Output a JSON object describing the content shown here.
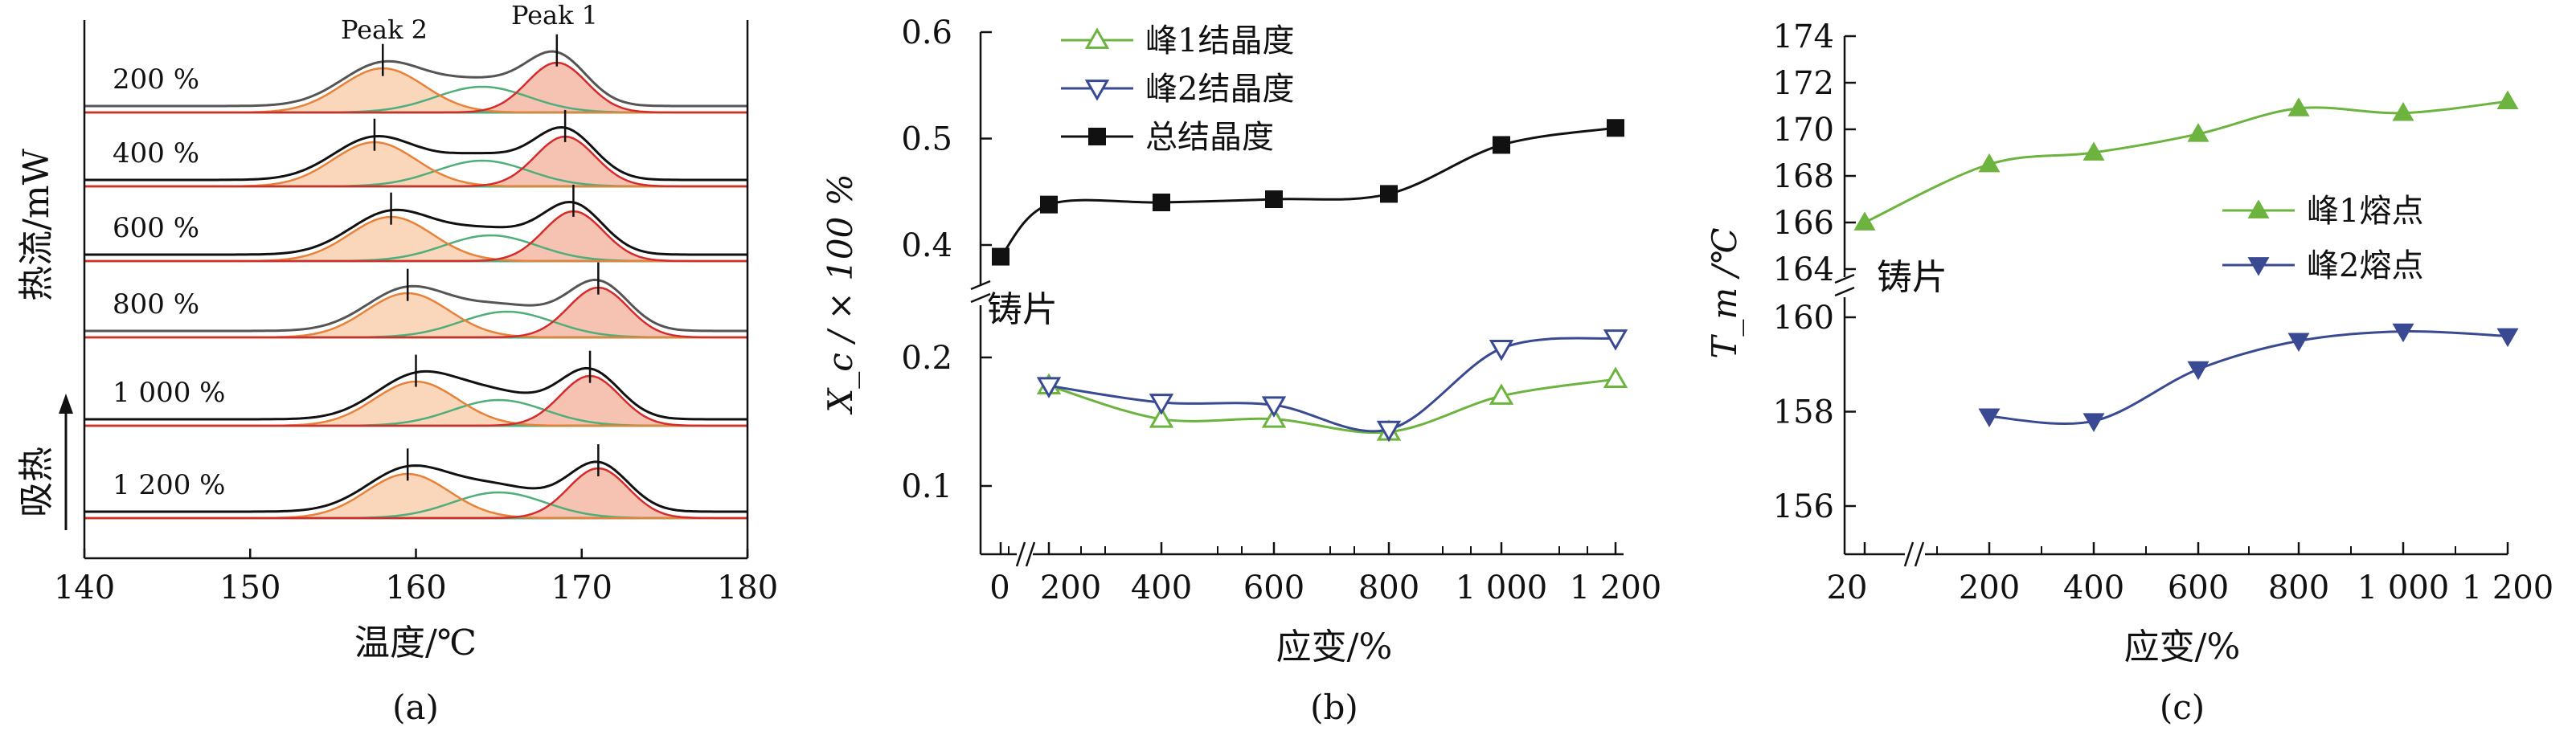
{
  "chart_data": [
    {
      "panel_label": "(a)",
      "type": "line",
      "xlabel": "温度/℃",
      "ylabel": "热流/mW",
      "endo_label": "吸热",
      "xticks": [
        "140",
        "150",
        "160",
        "170",
        "180"
      ],
      "xlim": [
        140,
        180
      ],
      "peak_labels": [
        "Peak 2",
        "Peak 1"
      ],
      "colors": {
        "total": "#111111",
        "peak1": "#d62b2b",
        "peak2": "#e8823a",
        "middle": "#4fae7a",
        "fill1": "#f5b8a6",
        "fill2": "#f9cfae"
      },
      "curves": [
        {
          "label": "200 %",
          "peak1_temp": 168.5,
          "peak2_temp": 158.0,
          "middle_temp": 164.0
        },
        {
          "label": "400 %",
          "peak1_temp": 169.0,
          "peak2_temp": 157.5,
          "middle_temp": 164.0
        },
        {
          "label": "600 %",
          "peak1_temp": 169.5,
          "peak2_temp": 158.5,
          "middle_temp": 164.5
        },
        {
          "label": "800 %",
          "peak1_temp": 171.0,
          "peak2_temp": 159.5,
          "middle_temp": 165.5
        },
        {
          "label": "1 000 %",
          "peak1_temp": 170.5,
          "peak2_temp": 160.0,
          "middle_temp": 165.0
        },
        {
          "label": "1 200 %",
          "peak1_temp": 171.0,
          "peak2_temp": 159.5,
          "middle_temp": 165.0
        }
      ]
    },
    {
      "panel_label": "(b)",
      "type": "line",
      "xlabel": "应变/%",
      "ylabel": "X_c / × 100 %",
      "xticks": [
        "0",
        "200",
        "400",
        "600",
        "800",
        "1 000",
        "1 200"
      ],
      "yticks_upper": [
        "0.4",
        "0.5",
        "0.6"
      ],
      "yticks_lower": [
        "0.1",
        "0.2"
      ],
      "annotation": "铸片",
      "series": [
        {
          "name": "峰1结晶度",
          "color": "#6db33f",
          "marker": "triangle-up-open",
          "x": [
            200,
            400,
            600,
            800,
            1000,
            1200
          ],
          "y": [
            0.178,
            0.152,
            0.152,
            0.142,
            0.17,
            0.183
          ]
        },
        {
          "name": "峰2结晶度",
          "color": "#3a4a92",
          "marker": "triangle-down-open",
          "x": [
            200,
            400,
            600,
            800,
            1000,
            1200
          ],
          "y": [
            0.178,
            0.165,
            0.163,
            0.144,
            0.207,
            0.215
          ]
        },
        {
          "name": "总结晶度",
          "color": "#111111",
          "marker": "square-filled",
          "x": [
            0,
            200,
            400,
            600,
            800,
            1000,
            1200
          ],
          "y": [
            0.389,
            0.438,
            0.44,
            0.443,
            0.448,
            0.494,
            0.51
          ]
        }
      ]
    },
    {
      "panel_label": "(c)",
      "type": "line",
      "xlabel": "应变/%",
      "ylabel": "T_m /℃",
      "xticks": [
        "20",
        "200",
        "400",
        "600",
        "800",
        "1 000",
        "1 200"
      ],
      "yticks_upper": [
        "164",
        "166",
        "168",
        "170",
        "172",
        "174"
      ],
      "yticks_lower": [
        "156",
        "158",
        "160"
      ],
      "annotation": "铸片",
      "series": [
        {
          "name": "峰1熔点",
          "color": "#6db33f",
          "marker": "triangle-up-filled",
          "x": [
            20,
            200,
            400,
            600,
            800,
            1000,
            1200
          ],
          "y": [
            166.0,
            168.5,
            169.0,
            169.8,
            170.9,
            170.7,
            171.2
          ]
        },
        {
          "name": "峰2熔点",
          "color": "#3a4a92",
          "marker": "triangle-down-filled",
          "x": [
            200,
            400,
            600,
            800,
            1000,
            1200
          ],
          "y": [
            157.9,
            157.8,
            158.9,
            159.5,
            159.7,
            159.6
          ]
        }
      ]
    }
  ]
}
